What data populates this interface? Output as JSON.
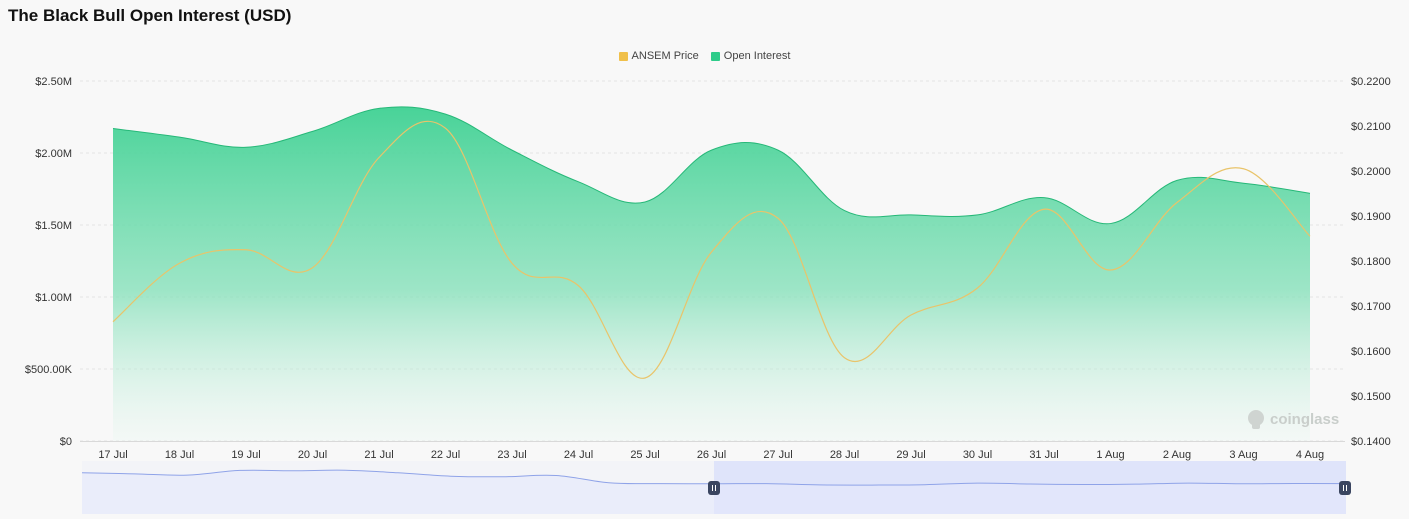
{
  "title": "The Black Bull Open Interest (USD)",
  "watermark": "coinglass",
  "chart_data": {
    "type": "area",
    "x": [
      "17 Jul",
      "18 Jul",
      "19 Jul",
      "20 Jul",
      "21 Jul",
      "22 Jul",
      "23 Jul",
      "24 Jul",
      "25 Jul",
      "26 Jul",
      "27 Jul",
      "28 Jul",
      "29 Jul",
      "30 Jul",
      "31 Jul",
      "1 Aug",
      "2 Aug",
      "3 Aug",
      "4 Aug"
    ],
    "legend_position": "top-center",
    "y_left": {
      "ticks": [
        "$0",
        "$500.00K",
        "$1.00M",
        "$1.50M",
        "$2.00M",
        "$2.50M"
      ],
      "range": [
        0,
        2500000
      ]
    },
    "y_right": {
      "ticks": [
        "$0.1400",
        "$0.1500",
        "$0.1600",
        "$0.1700",
        "$0.1800",
        "$0.1900",
        "$0.2000",
        "$0.2100",
        "$0.2200"
      ],
      "range": [
        0.14,
        0.22
      ]
    },
    "series": [
      {
        "name": "ANSEM Price",
        "axis": "right",
        "type": "line",
        "color": "#f0c04a",
        "values": [
          0.1665,
          0.1795,
          0.1825,
          0.1785,
          0.203,
          0.2095,
          0.1795,
          0.1745,
          0.154,
          0.182,
          0.1895,
          0.1585,
          0.168,
          0.174,
          0.1915,
          0.178,
          0.193,
          0.2005,
          0.1855
        ]
      },
      {
        "name": "Open Interest",
        "axis": "left",
        "type": "area",
        "color": "#2ecc8a",
        "values": [
          2170000,
          2110000,
          2040000,
          2150000,
          2310000,
          2270000,
          2020000,
          1800000,
          1660000,
          2020000,
          2020000,
          1600000,
          1570000,
          1570000,
          1690000,
          1510000,
          1810000,
          1790000,
          1720000
        ]
      }
    ],
    "navigator": {
      "values": [
        2170000,
        2110000,
        2040000,
        2300000,
        2280000,
        2310000,
        2170000,
        1980000,
        1950000,
        2020000,
        1620000,
        1570000,
        1560000,
        1570000,
        1500000,
        1490000,
        1510000,
        1600000,
        1550000,
        1520000,
        1540000,
        1600000,
        1560000,
        1580000,
        1570000
      ]
    }
  }
}
